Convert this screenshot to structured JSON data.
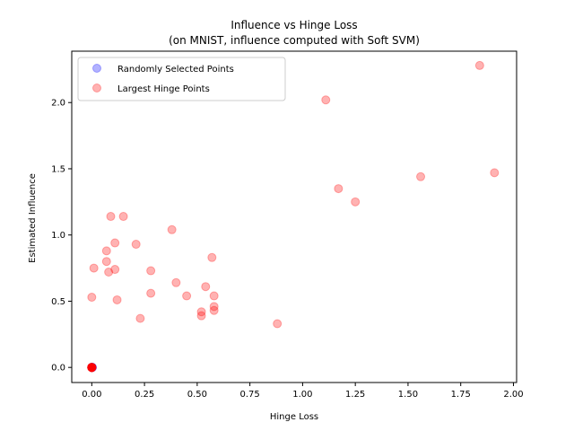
{
  "chart_data": {
    "type": "scatter",
    "title": [
      "Influence vs Hinge Loss",
      "(on MNIST, influence computed with Soft SVM)"
    ],
    "xlabel": "Hinge Loss",
    "ylabel": "Estimated Influence",
    "xlim": [
      -0.095,
      2.015
    ],
    "ylim": [
      -0.114,
      2.388
    ],
    "xticks": [
      0.0,
      0.25,
      0.5,
      0.75,
      1.0,
      1.25,
      1.5,
      1.75,
      2.0
    ],
    "xtick_labels": [
      "0.00",
      "0.25",
      "0.50",
      "0.75",
      "1.00",
      "1.25",
      "1.50",
      "1.75",
      "2.00"
    ],
    "yticks": [
      0.0,
      0.5,
      1.0,
      1.5,
      2.0
    ],
    "ytick_labels": [
      "0.0",
      "0.5",
      "1.0",
      "1.5",
      "2.0"
    ],
    "grid": false,
    "legend_position": "top-left",
    "series": [
      {
        "name": "Randomly Selected Points",
        "color": "#0000ff",
        "alpha": 0.3,
        "points": [
          [
            0.0,
            0.0
          ],
          [
            0.001,
            0.0
          ],
          [
            0.002,
            0.001
          ],
          [
            0.0,
            0.002
          ],
          [
            0.003,
            0.0
          ]
        ]
      },
      {
        "name": "Largest Hinge Points",
        "color": "#ff0000",
        "alpha": 0.3,
        "points": [
          [
            1.84,
            2.28
          ],
          [
            1.11,
            2.02
          ],
          [
            1.91,
            1.47
          ],
          [
            1.56,
            1.44
          ],
          [
            1.17,
            1.35
          ],
          [
            1.25,
            1.25
          ],
          [
            0.09,
            1.14
          ],
          [
            0.15,
            1.14
          ],
          [
            0.38,
            1.04
          ],
          [
            0.21,
            0.93
          ],
          [
            0.11,
            0.94
          ],
          [
            0.07,
            0.88
          ],
          [
            0.57,
            0.83
          ],
          [
            0.07,
            0.8
          ],
          [
            0.01,
            0.75
          ],
          [
            0.08,
            0.72
          ],
          [
            0.11,
            0.74
          ],
          [
            0.28,
            0.73
          ],
          [
            0.4,
            0.64
          ],
          [
            0.54,
            0.61
          ],
          [
            0.28,
            0.56
          ],
          [
            0.45,
            0.54
          ],
          [
            0.58,
            0.54
          ],
          [
            0.0,
            0.53
          ],
          [
            0.12,
            0.51
          ],
          [
            0.58,
            0.46
          ],
          [
            0.58,
            0.43
          ],
          [
            0.52,
            0.42
          ],
          [
            0.52,
            0.39
          ],
          [
            0.23,
            0.37
          ],
          [
            0.88,
            0.33
          ],
          [
            0.0,
            0.0
          ],
          [
            0.0,
            0.0
          ],
          [
            0.0,
            0.0
          ],
          [
            0.0,
            0.0
          ],
          [
            0.0,
            0.0
          ],
          [
            0.0,
            0.0
          ],
          [
            0.0,
            0.0
          ],
          [
            0.0,
            0.0
          ],
          [
            0.0,
            0.0
          ],
          [
            0.0,
            0.0
          ],
          [
            0.0,
            0.0
          ],
          [
            0.0,
            0.0
          ]
        ]
      }
    ]
  }
}
